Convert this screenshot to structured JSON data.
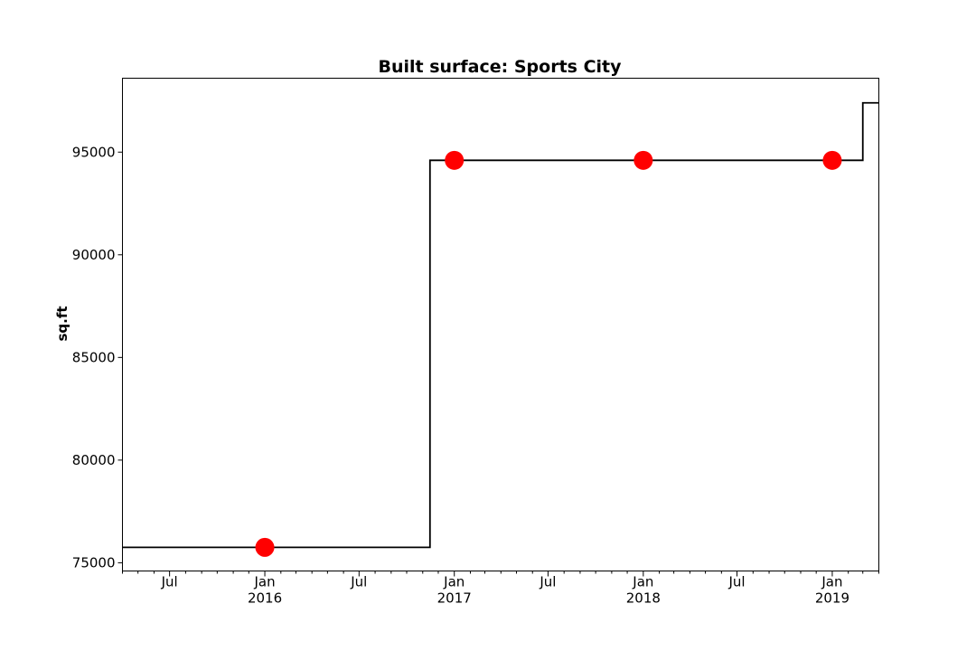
{
  "chart_data": {
    "type": "line",
    "title": "Built surface: Sports City",
    "xlabel": "",
    "ylabel": "sq.ft",
    "xlim": [
      "2015-04-01",
      "2019-04-01"
    ],
    "ylim": [
      74600,
      98600
    ],
    "grid": false,
    "legend": "none",
    "y_ticks": [
      75000,
      80000,
      85000,
      90000,
      95000
    ],
    "y_tick_labels": [
      "75000",
      "80000",
      "85000",
      "90000",
      "95000"
    ],
    "x_major_ticks": [
      {
        "date": "2015-07-01",
        "label": "Jul",
        "year": ""
      },
      {
        "date": "2016-01-01",
        "label": "Jan",
        "year": "2016"
      },
      {
        "date": "2016-07-01",
        "label": "Jul",
        "year": ""
      },
      {
        "date": "2017-01-01",
        "label": "Jan",
        "year": "2017"
      },
      {
        "date": "2017-07-01",
        "label": "Jul",
        "year": ""
      },
      {
        "date": "2018-01-01",
        "label": "Jan",
        "year": "2018"
      },
      {
        "date": "2018-07-01",
        "label": "Jul",
        "year": ""
      },
      {
        "date": "2019-01-01",
        "label": "Jan",
        "year": "2019"
      }
    ],
    "series": [
      {
        "style": "step",
        "color": "#000000",
        "x": [
          "2015-04-01",
          "2016-11-15",
          "2019-03-01",
          "2019-04-01"
        ],
        "y": [
          75750,
          94600,
          97400,
          97400
        ]
      },
      {
        "style": "markers",
        "color": "#ff0000",
        "x": [
          "2016-01-01",
          "2017-01-01",
          "2018-01-01",
          "2019-01-01"
        ],
        "y": [
          75750,
          94600,
          94600,
          94600
        ]
      }
    ]
  }
}
